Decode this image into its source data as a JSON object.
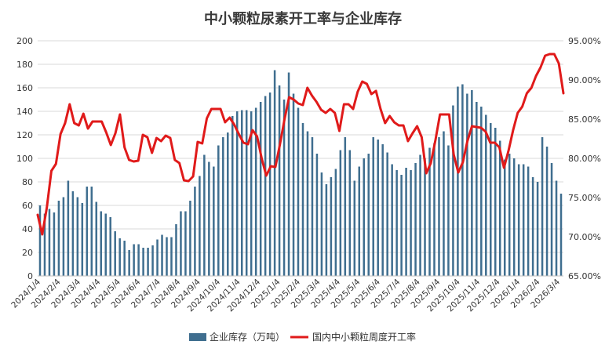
{
  "chart_data": {
    "type": "bar-line",
    "title": "中小颗粒尿素开工率与企业库存",
    "y_left": {
      "min": 0,
      "max": 200,
      "step": 20,
      "tick_labels": [
        "0",
        "20",
        "40",
        "60",
        "80",
        "100",
        "120",
        "140",
        "160",
        "180",
        "200"
      ]
    },
    "y_right": {
      "min": 65.0,
      "max": 95.0,
      "step": 5,
      "tick_labels": [
        "65.00%",
        "70.00%",
        "75.00%",
        "80.00%",
        "85.00%",
        "90.00%",
        "95.00%"
      ]
    },
    "x_tick_labels": [
      "2024/1/4",
      "2024/2/4",
      "2024/3/4",
      "2024/4/4",
      "2024/5/4",
      "2024/6/4",
      "2024/7/4",
      "2024/8/4",
      "2024/9/4",
      "2024/10/4",
      "2024/11/4",
      "2024/12/4",
      "2025/1/4",
      "2025/2/4",
      "2025/3/4",
      "2025/4/4",
      "2025/5/4",
      "2025/6/4",
      "2025/7/4",
      "2025/8/4",
      "2025/9/4",
      "2025/10/4",
      "2025/11/4",
      "2025/12/4",
      "2026/1/4",
      "2026/2/4",
      "2026/3/4"
    ],
    "grid": "horizontal",
    "legend_position": "bottom",
    "series": [
      {
        "name": "企业库存（万吨）",
        "type": "bar",
        "axis": "left",
        "color": "#3f6e8f",
        "values": [
          60,
          53,
          57,
          54,
          64,
          67,
          81,
          72,
          67,
          62,
          76,
          76,
          63,
          55,
          53,
          50,
          38,
          32,
          30,
          22,
          27,
          27,
          24,
          24,
          26,
          31,
          35,
          33,
          33,
          44,
          55,
          55,
          64,
          76,
          85,
          103,
          97,
          93,
          111,
          118,
          122,
          136,
          140,
          141,
          141,
          140,
          143,
          148,
          153,
          156,
          175,
          162,
          150,
          173,
          155,
          143,
          130,
          123,
          118,
          104,
          88,
          78,
          84,
          91,
          107,
          118,
          107,
          81,
          93,
          100,
          104,
          118,
          116,
          112,
          105,
          95,
          90,
          86,
          92,
          90,
          96,
          103,
          100,
          109,
          113,
          118,
          123,
          111,
          145,
          161,
          163,
          155,
          158,
          148,
          144,
          137,
          130,
          126,
          115,
          99,
          104,
          100,
          95,
          95,
          93,
          84,
          80,
          118,
          110,
          96,
          81,
          70
        ]
      },
      {
        "name": "国内中小颗粒周度开工率",
        "type": "line",
        "axis": "right",
        "color": "#e01a1a",
        "values": [
          72.8,
          70.3,
          73.7,
          78.4,
          79.3,
          83.1,
          84.5,
          86.9,
          84.5,
          84.2,
          85.7,
          83.8,
          84.7,
          84.7,
          84.7,
          83.3,
          81.7,
          83.2,
          85.6,
          81.4,
          79.8,
          79.6,
          79.7,
          83.0,
          82.7,
          80.7,
          82.6,
          82.2,
          82.9,
          82.6,
          79.8,
          79.4,
          77.2,
          77.1,
          77.7,
          82.1,
          81.9,
          85.1,
          86.3,
          86.3,
          86.3,
          84.6,
          85.2,
          84.3,
          83.1,
          82.0,
          81.8,
          83.6,
          82.8,
          80.0,
          77.8,
          79.0,
          78.9,
          81.8,
          85.0,
          87.8,
          87.5,
          87.0,
          86.8,
          89.0,
          88.0,
          87.2,
          86.2,
          85.8,
          86.3,
          85.8,
          83.5,
          86.9,
          86.9,
          86.3,
          88.5,
          89.8,
          89.5,
          88.2,
          88.6,
          86.3,
          84.5,
          85.4,
          84.6,
          84.2,
          84.2,
          82.2,
          83.2,
          84.1,
          82.7,
          78.1,
          79.4,
          82.3,
          85.6,
          85.6,
          85.6,
          80.5,
          78.2,
          79.5,
          82.2,
          84.1,
          84.0,
          83.9,
          83.4,
          82.0,
          82.0,
          81.4,
          78.8,
          81.0,
          83.6,
          85.8,
          86.6,
          88.3,
          89.0,
          90.5,
          91.6,
          93.1,
          93.3,
          93.3,
          92.1,
          88.3
        ]
      }
    ]
  }
}
